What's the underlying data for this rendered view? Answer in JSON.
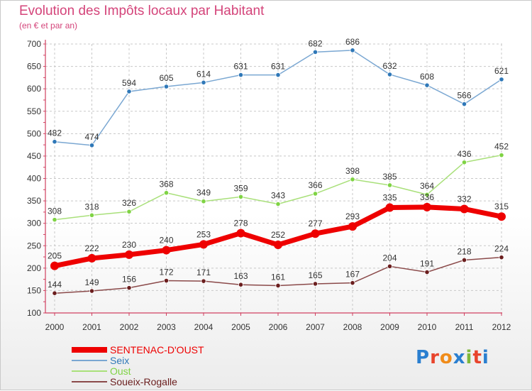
{
  "header": {
    "title": "Evolution des Impôts locaux par Habitant",
    "subtitle": "(en € et par an)"
  },
  "logo": {
    "text": "Proxiti",
    "letter_colors": [
      "#2a7fd0",
      "#e8442c",
      "#f08c1a",
      "#2a7fd0",
      "#7fb83a",
      "#e8442c",
      "#2a7fd0"
    ]
  },
  "chart_data": {
    "type": "line",
    "title": "Evolution des Impôts locaux par Habitant",
    "subtitle": "(en € et par an)",
    "xlabel": "",
    "ylabel": "",
    "ylim": [
      100,
      700
    ],
    "yticks": [
      100,
      150,
      200,
      250,
      300,
      350,
      400,
      450,
      500,
      550,
      600,
      650,
      700
    ],
    "grid": true,
    "legend_position": "bottom-left",
    "x": [
      "2000",
      "2001",
      "2002",
      "2003",
      "2004",
      "2005",
      "2006",
      "2007",
      "2008",
      "2009",
      "2010",
      "2011",
      "2012"
    ],
    "series": [
      {
        "name": "Seix",
        "color": "#7aa7d2",
        "marker_color": "#2f78b8",
        "emphasis": false,
        "values": [
          482,
          474,
          594,
          605,
          614,
          631,
          631,
          682,
          686,
          632,
          608,
          566,
          621
        ]
      },
      {
        "name": "Oust",
        "color": "#a9e07a",
        "marker_color": "#7fd344",
        "emphasis": false,
        "values": [
          308,
          318,
          326,
          368,
          349,
          359,
          343,
          366,
          398,
          385,
          364,
          436,
          452
        ]
      },
      {
        "name": "SENTENAC-D'OUST",
        "color": "#ee0000",
        "marker_color": "#ee0000",
        "emphasis": true,
        "values": [
          205,
          222,
          230,
          240,
          253,
          278,
          252,
          277,
          293,
          335,
          336,
          332,
          315
        ]
      },
      {
        "name": "Soueix-Rogalle",
        "color": "#8b4a4a",
        "marker_color": "#6b1e1e",
        "emphasis": false,
        "values": [
          144,
          149,
          156,
          172,
          171,
          163,
          161,
          165,
          167,
          204,
          191,
          218,
          224
        ]
      }
    ],
    "legend_order": [
      "SENTENAC-D'OUST",
      "Seix",
      "Oust",
      "Soueix-Rogalle"
    ]
  }
}
